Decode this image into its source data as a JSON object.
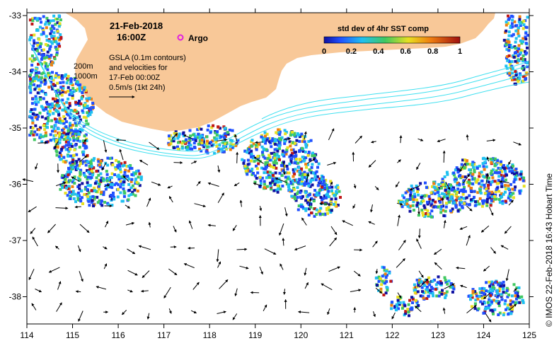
{
  "title": {
    "date": "21-Feb-2018",
    "time": "16:00Z"
  },
  "legend": {
    "argo_label": "Argo",
    "argo_color": "#e020e0",
    "colorbar_title": "std dev of 4hr SST comp",
    "colorbar_ticks": [
      "0",
      "0.2",
      "0.4",
      "0.6",
      "0.8",
      "1"
    ],
    "contour_labels": [
      "200m",
      "1000m"
    ],
    "gsla_lines": [
      "GSLA (0.1m contours)",
      "and velocities for",
      "17-Feb 00:00Z",
      "0.5m/s (1kt 24h)"
    ]
  },
  "axes": {
    "x_ticks": [
      "114",
      "115",
      "116",
      "117",
      "118",
      "119",
      "120",
      "121",
      "122",
      "123",
      "124",
      "125"
    ],
    "y_ticks": [
      "-33",
      "-34",
      "-35",
      "-36",
      "-37",
      "-38"
    ]
  },
  "credit": "©  IMOS 22-Feb-2018 16:43 Hobart Time",
  "colors": {
    "land": "#f8c898",
    "contour": "#40e0f0",
    "frame": "#000000"
  }
}
